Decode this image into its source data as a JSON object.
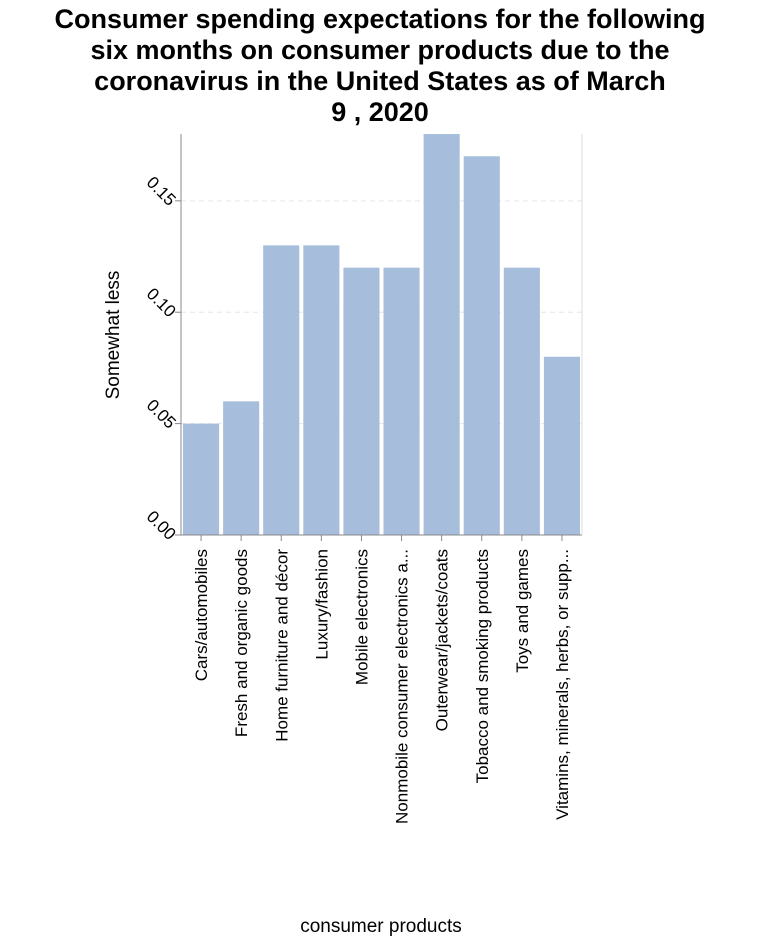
{
  "chart_data": {
    "type": "bar",
    "title_lines": [
      "Consumer spending expectations for the following",
      "six months on consumer products due to the",
      "coronavirus in the United States as of March",
      "9 , 2020"
    ],
    "xlabel": "consumer products",
    "ylabel": "Somewhat less",
    "ylim": [
      0,
      0.18
    ],
    "yticks": [
      "0.00",
      "0.05",
      "0.10",
      "0.15"
    ],
    "ytick_values": [
      0,
      0.05,
      0.1,
      0.15
    ],
    "categories": [
      "Cars/automobiles",
      "Fresh and organic goods",
      "Home furniture and décor",
      "Luxury/fashion",
      "Mobile electronics",
      "Nonmobile consumer electronics a...",
      "Outerwear/jackets/coats",
      "Tobacco and smoking products",
      "Toys and games",
      "Vitamins, minerals, herbs, or supp..."
    ],
    "values": [
      0.05,
      0.06,
      0.13,
      0.13,
      0.12,
      0.12,
      0.18,
      0.17,
      0.12,
      0.08
    ],
    "bar_color": "#a6bddb",
    "grid": true
  }
}
